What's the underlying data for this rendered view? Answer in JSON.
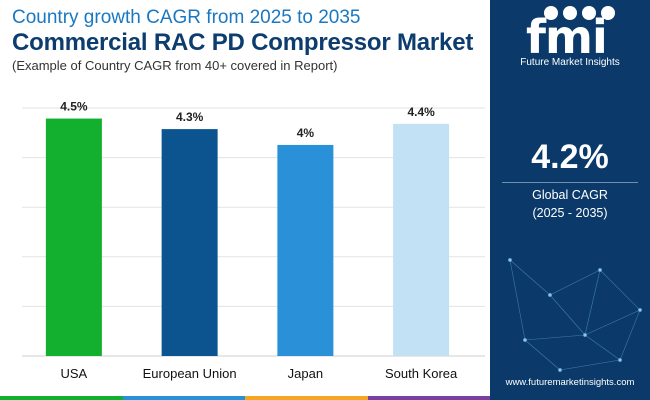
{
  "header": {
    "title_top": "Country growth CAGR from 2025 to 2035",
    "title_main": "Commercial RAC PD Compressor Market",
    "subtitle": "(Example of Country CAGR from 40+ covered in Report)"
  },
  "chart_data": {
    "type": "bar",
    "categories": [
      "USA",
      "European Union",
      "Japan",
      "South Korea"
    ],
    "values": [
      4.5,
      4.3,
      4.0,
      4.4
    ],
    "value_labels": [
      "4.5%",
      "4.3%",
      "4%",
      "4.4%"
    ],
    "colors": [
      "#12b02e",
      "#0b5490",
      "#2a90d8",
      "#c3e1f5"
    ],
    "ylim": [
      0,
      4.7
    ],
    "gridlines": [
      0,
      1,
      2,
      3,
      4,
      5
    ],
    "grid": true,
    "unit": "%"
  },
  "panel": {
    "logo_text": "fmi",
    "logo_sub": "Future Market Insights",
    "cagr_value": "4.2%",
    "cagr_label": "Global CAGR",
    "cagr_period": "(2025 - 2035)",
    "website": "www.futuremarketinsights.com",
    "bg_color": "#0b3a6a"
  },
  "strip_colors": [
    "#12b02e",
    "#2a90d8",
    "#f5a623",
    "#7b3fa0"
  ]
}
